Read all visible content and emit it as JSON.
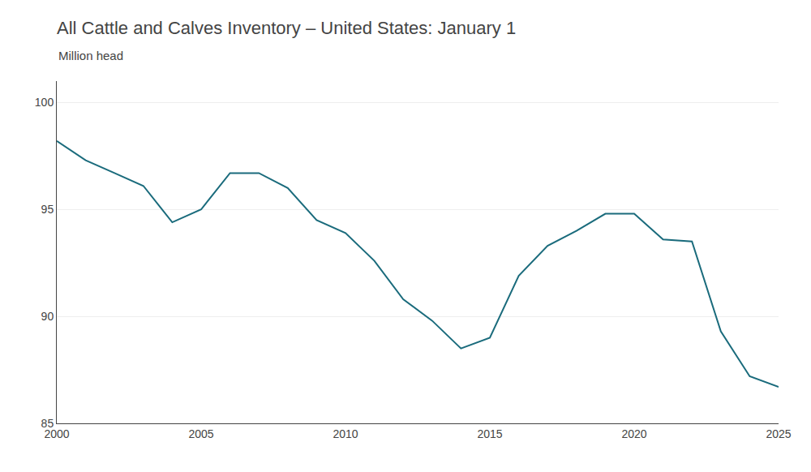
{
  "chart_data": {
    "type": "line",
    "title": "All Cattle and Calves Inventory – United States: January 1",
    "subtitle": "Million head",
    "x": [
      2000,
      2001,
      2002,
      2003,
      2004,
      2005,
      2006,
      2007,
      2008,
      2009,
      2010,
      2011,
      2012,
      2013,
      2014,
      2015,
      2016,
      2017,
      2018,
      2019,
      2020,
      2021,
      2022,
      2023,
      2024,
      2025
    ],
    "values": [
      98.2,
      97.3,
      96.7,
      96.1,
      94.4,
      95.0,
      96.7,
      96.7,
      96.0,
      94.5,
      93.9,
      92.6,
      90.8,
      89.8,
      88.5,
      89.0,
      91.9,
      93.3,
      94.0,
      94.8,
      94.8,
      93.6,
      93.5,
      89.3,
      87.2,
      86.7
    ],
    "color": "#1a6b7c",
    "xlim": [
      2000,
      2025
    ],
    "ylim": [
      85,
      101
    ],
    "xticks": [
      2000,
      2005,
      2010,
      2015,
      2020,
      2025
    ],
    "yticks": [
      85,
      90,
      95,
      100
    ],
    "grid": "y"
  }
}
